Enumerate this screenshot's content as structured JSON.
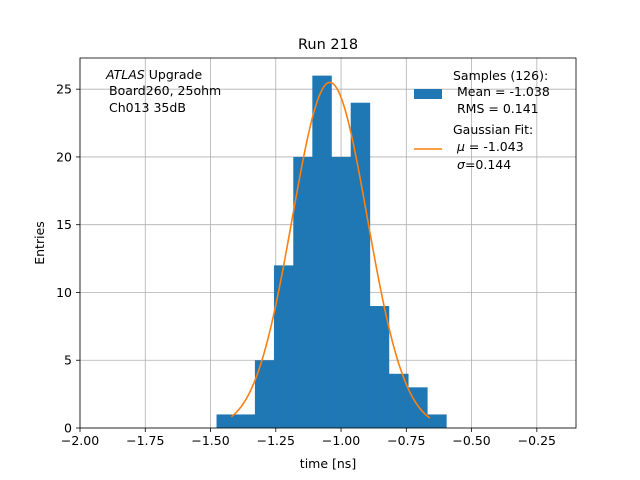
{
  "chart_data": {
    "type": "bar",
    "title": "Run 218",
    "xlabel": "time [ns]",
    "ylabel": "Entries",
    "xlim": [
      -2.0,
      -0.1
    ],
    "ylim": [
      0,
      27.3
    ],
    "xticks": [
      -2.0,
      -1.75,
      -1.5,
      -1.25,
      -1.0,
      -0.75,
      -0.5,
      -0.25
    ],
    "xtick_labels": [
      "−2.00",
      "−1.75",
      "−1.50",
      "−1.25",
      "−1.00",
      "−0.75",
      "−0.50",
      "−0.25"
    ],
    "yticks": [
      0,
      5,
      10,
      15,
      20,
      25
    ],
    "ytick_labels": [
      "0",
      "5",
      "10",
      "15",
      "20",
      "25"
    ],
    "grid": true,
    "legend_position": "top-right",
    "histogram": {
      "bin_edges": [
        -1.477,
        -1.403,
        -1.33,
        -1.257,
        -1.183,
        -1.11,
        -1.037,
        -0.963,
        -0.89,
        -0.817,
        -0.743,
        -0.67,
        -0.597
      ],
      "counts": [
        1,
        1,
        5,
        12,
        20,
        26,
        20,
        24,
        9,
        4,
        3,
        1
      ],
      "color": "#1f77b4"
    },
    "fit": {
      "mu": -1.043,
      "sigma": 0.144,
      "amplitude": 25.5,
      "x_range": [
        -1.42,
        -0.66
      ],
      "color": "#ff7f0e"
    },
    "annotation_lines": [
      "Upgrade",
      "Board260, 25ohm",
      "Ch013 35dB"
    ],
    "annotation_italic": "ATLAS",
    "legend": {
      "samples": {
        "label": "Samples (126):",
        "line2": "Mean = -1.038",
        "line3": "RMS = 0.141"
      },
      "fit": {
        "label": "Gaussian Fit:",
        "mu_symbol": "μ",
        "mu_value": " = -1.043",
        "sigma_symbol": "σ",
        "sigma_value": "=0.144"
      }
    }
  }
}
